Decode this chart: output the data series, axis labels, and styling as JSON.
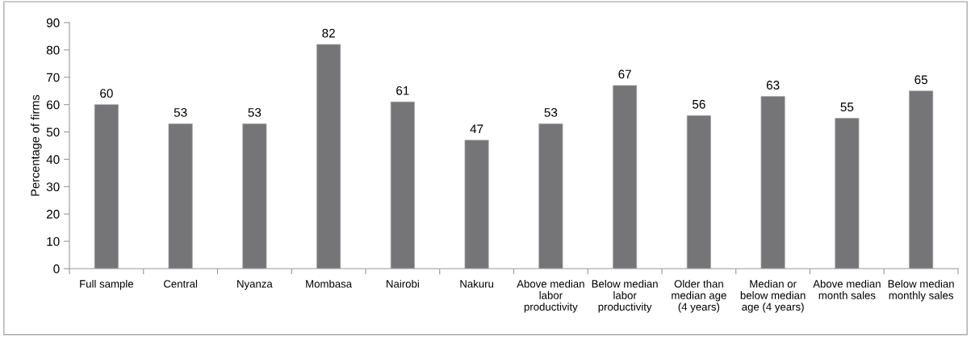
{
  "chart_data": {
    "type": "bar",
    "ylabel": "Percentage of firms",
    "categories": [
      "Full sample",
      "Central",
      "Nyanza",
      "Mombasa",
      "Nairobi",
      "Nakuru",
      "Above median\nlabor\nproductivity",
      "Below median\nlabor\nproductivity",
      "Older than\nmedian age\n(4 years)",
      "Median or\nbelow median\nage (4 years)",
      "Above median\nmonth sales",
      "Below median\nmonthly sales"
    ],
    "values": [
      60,
      53,
      53,
      82,
      61,
      47,
      53,
      67,
      56,
      63,
      55,
      65
    ],
    "color": "#757578",
    "ylim": [
      0,
      90
    ],
    "yticks": [
      0,
      10,
      20,
      30,
      40,
      50,
      60,
      70,
      80,
      90
    ],
    "data_labels": true,
    "grid": false,
    "legend": false
  }
}
